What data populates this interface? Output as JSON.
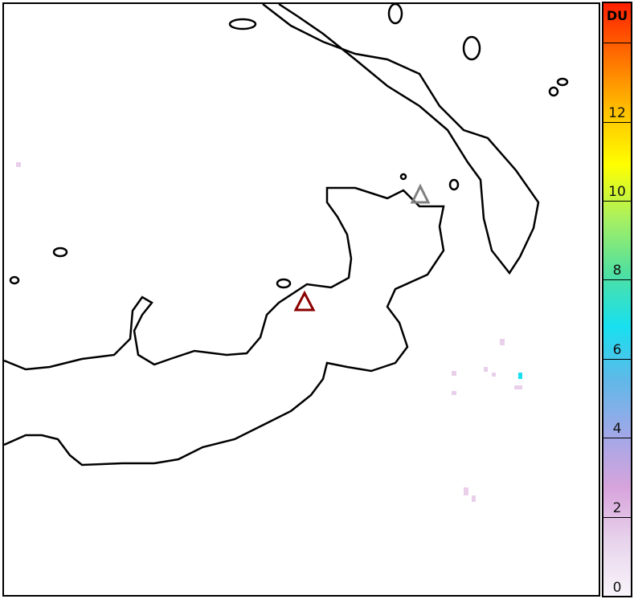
{
  "colorbar": {
    "unit": "DU",
    "min": 0,
    "max": 15,
    "tick_labels": [
      "0",
      "2",
      "4",
      "6",
      "8",
      "10",
      "12"
    ],
    "colors": [
      "#f8f4fa",
      "#e8d4ec",
      "#d8a4dc",
      "#a0a8e8",
      "#60b8e8",
      "#18e0f0",
      "#50e0a0",
      "#a8f060",
      "#ffff00",
      "#ffc000",
      "#ff7000",
      "#ff2000"
    ]
  },
  "markers": [
    {
      "name": "volcano-triangle",
      "color": "#8b0000"
    },
    {
      "name": "volcano-triangle",
      "color": "#808080"
    }
  ],
  "coastline_color": "#000000"
}
